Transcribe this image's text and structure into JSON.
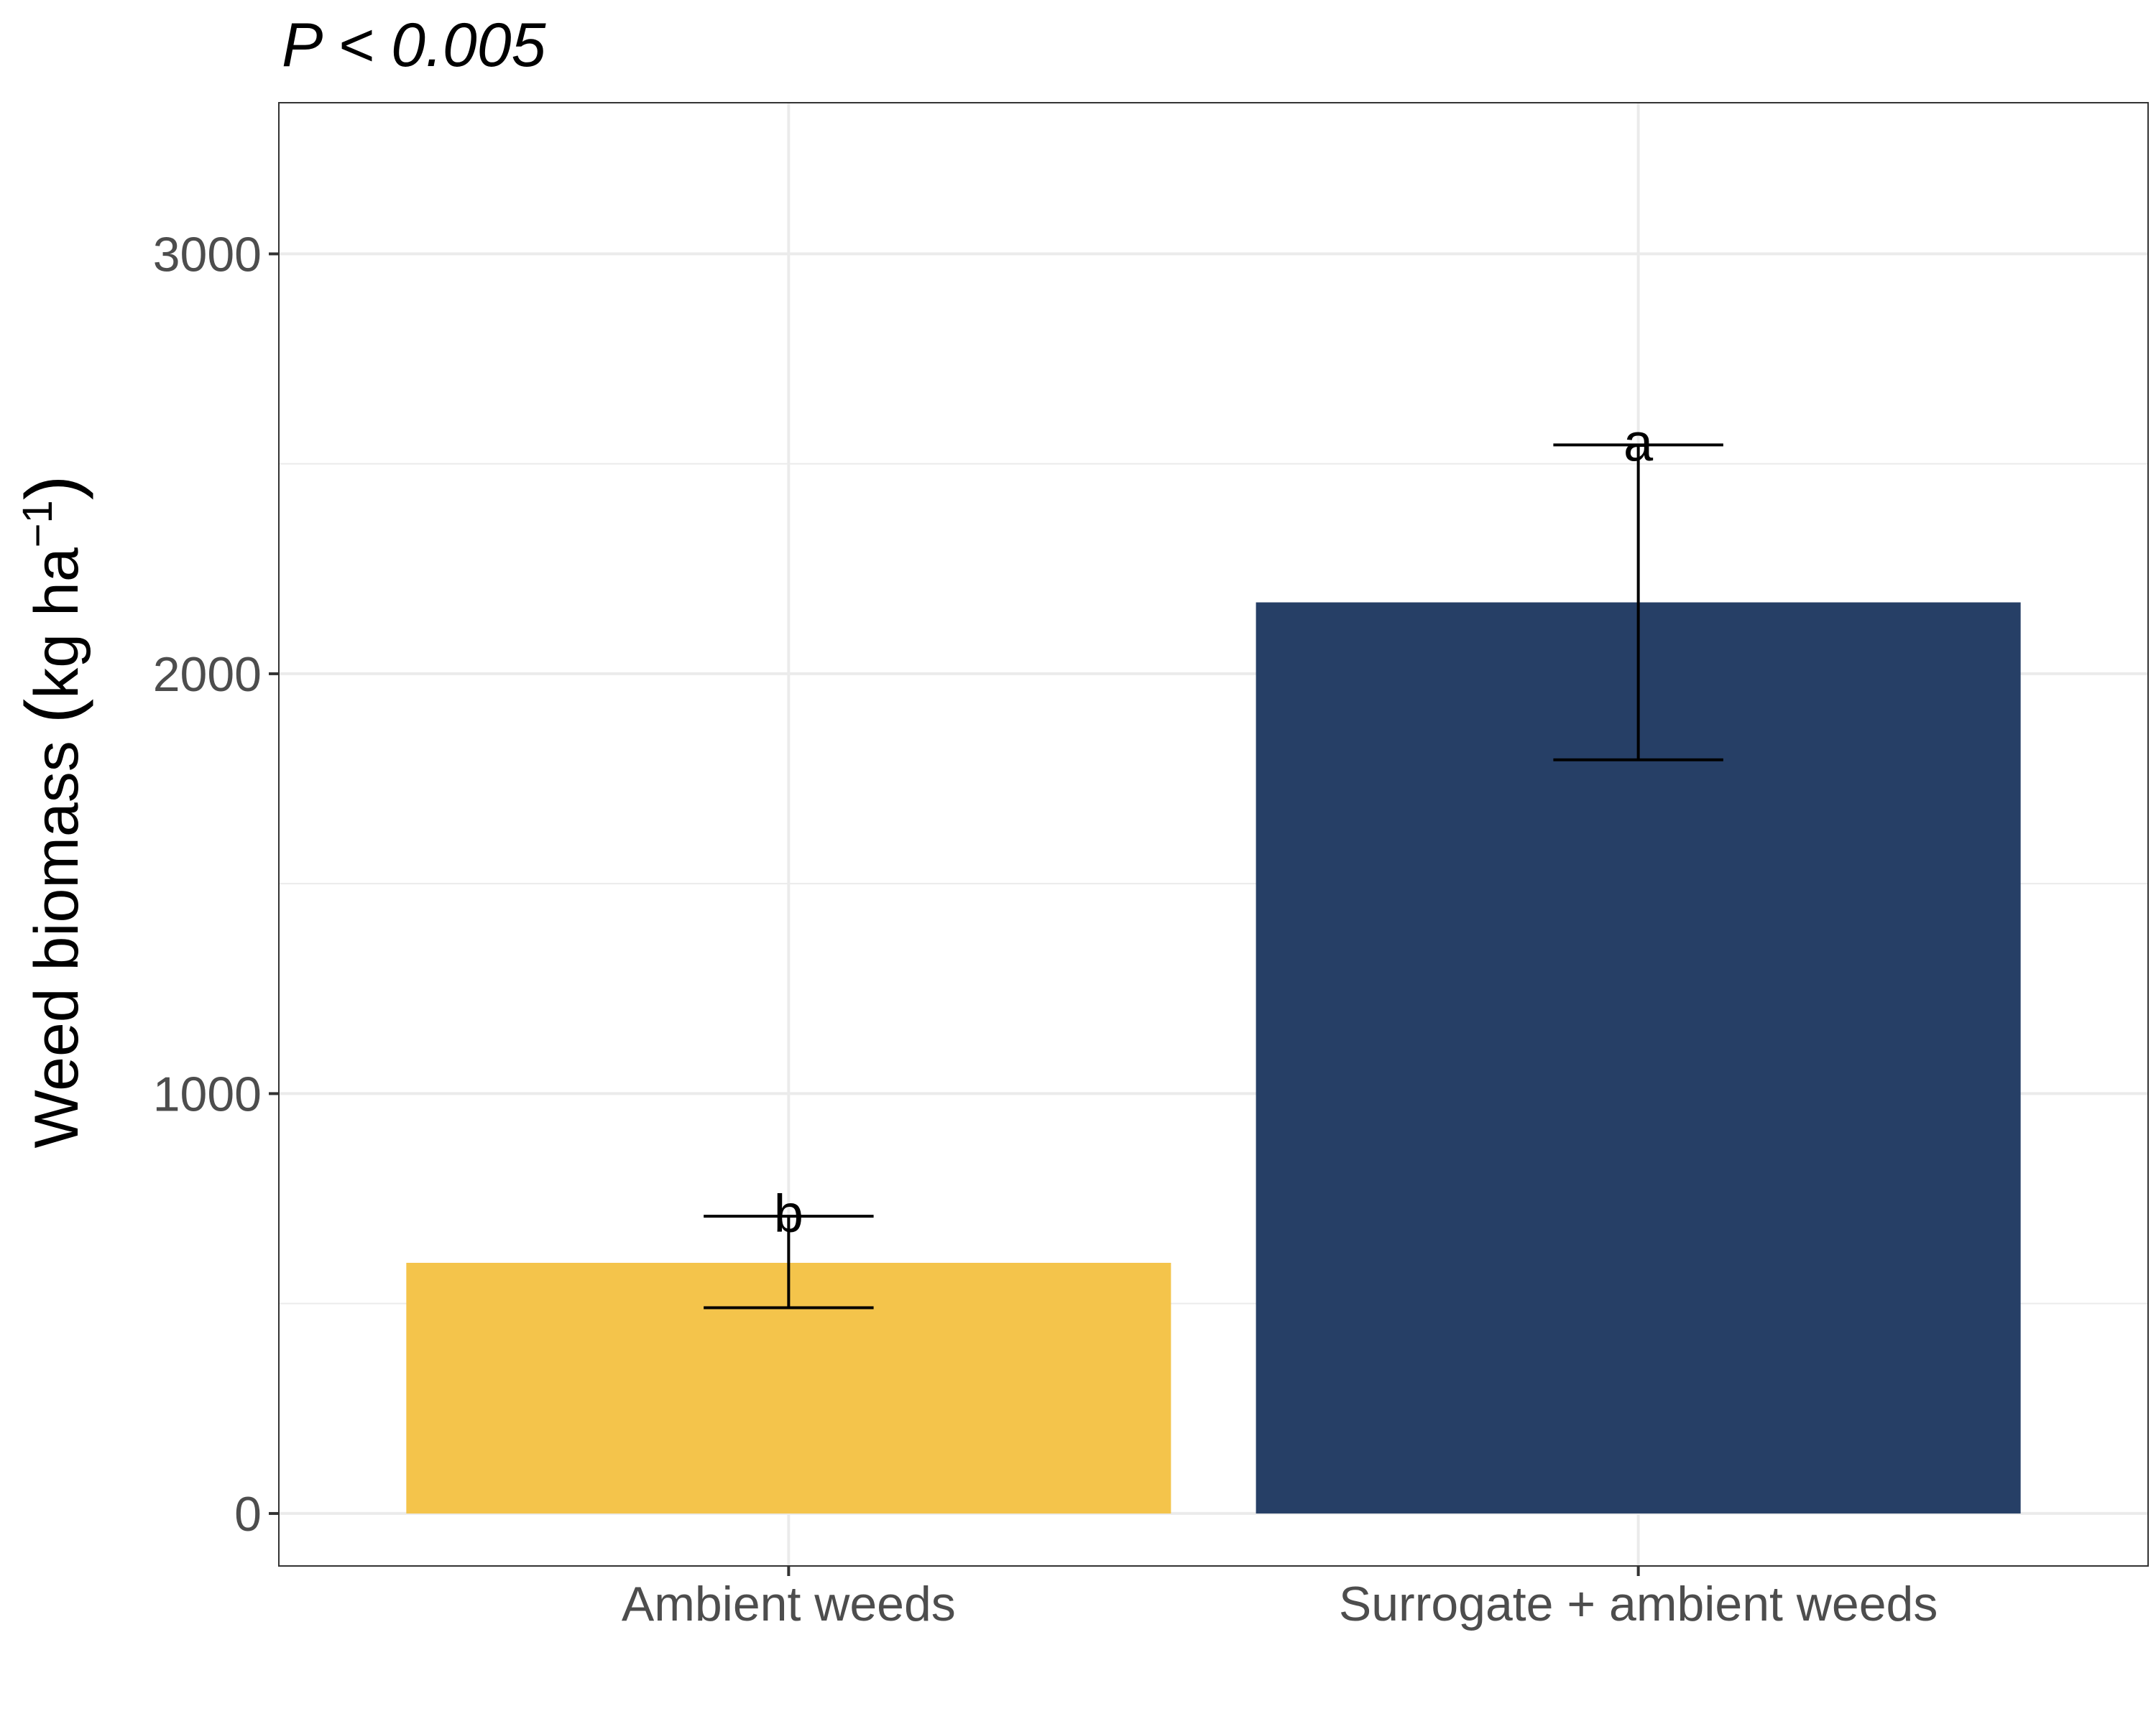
{
  "title": "P < 0.005",
  "title_parts": {
    "italic_p": "P",
    "rest": " < 0.005"
  },
  "ylabel_parts": {
    "main": "Weed biomass ",
    "open": "(",
    "unit": "kg ha",
    "sup": "−1",
    "close": ")"
  },
  "colors": {
    "bar_ambient": "#F4C44B",
    "bar_surrogate": "#263F66",
    "grid": "#ebebeb",
    "panel_border": "#333333",
    "errorbar": "#000000"
  },
  "chart_data": {
    "type": "bar",
    "title": "P < 0.005",
    "xlabel": "",
    "ylabel": "Weed biomass (kg ha−1)",
    "categories": [
      "Ambient weeds",
      "Surrogate + ambient weeds"
    ],
    "values": [
      597,
      2170
    ],
    "error_lower": [
      490,
      1795
    ],
    "error_upper": [
      708,
      2545
    ],
    "significance_letters": [
      "b",
      "a"
    ],
    "ylim": [
      -125,
      3360
    ],
    "yticks": [
      0,
      1000,
      2000,
      3000
    ],
    "grid": true,
    "legend": "none"
  }
}
